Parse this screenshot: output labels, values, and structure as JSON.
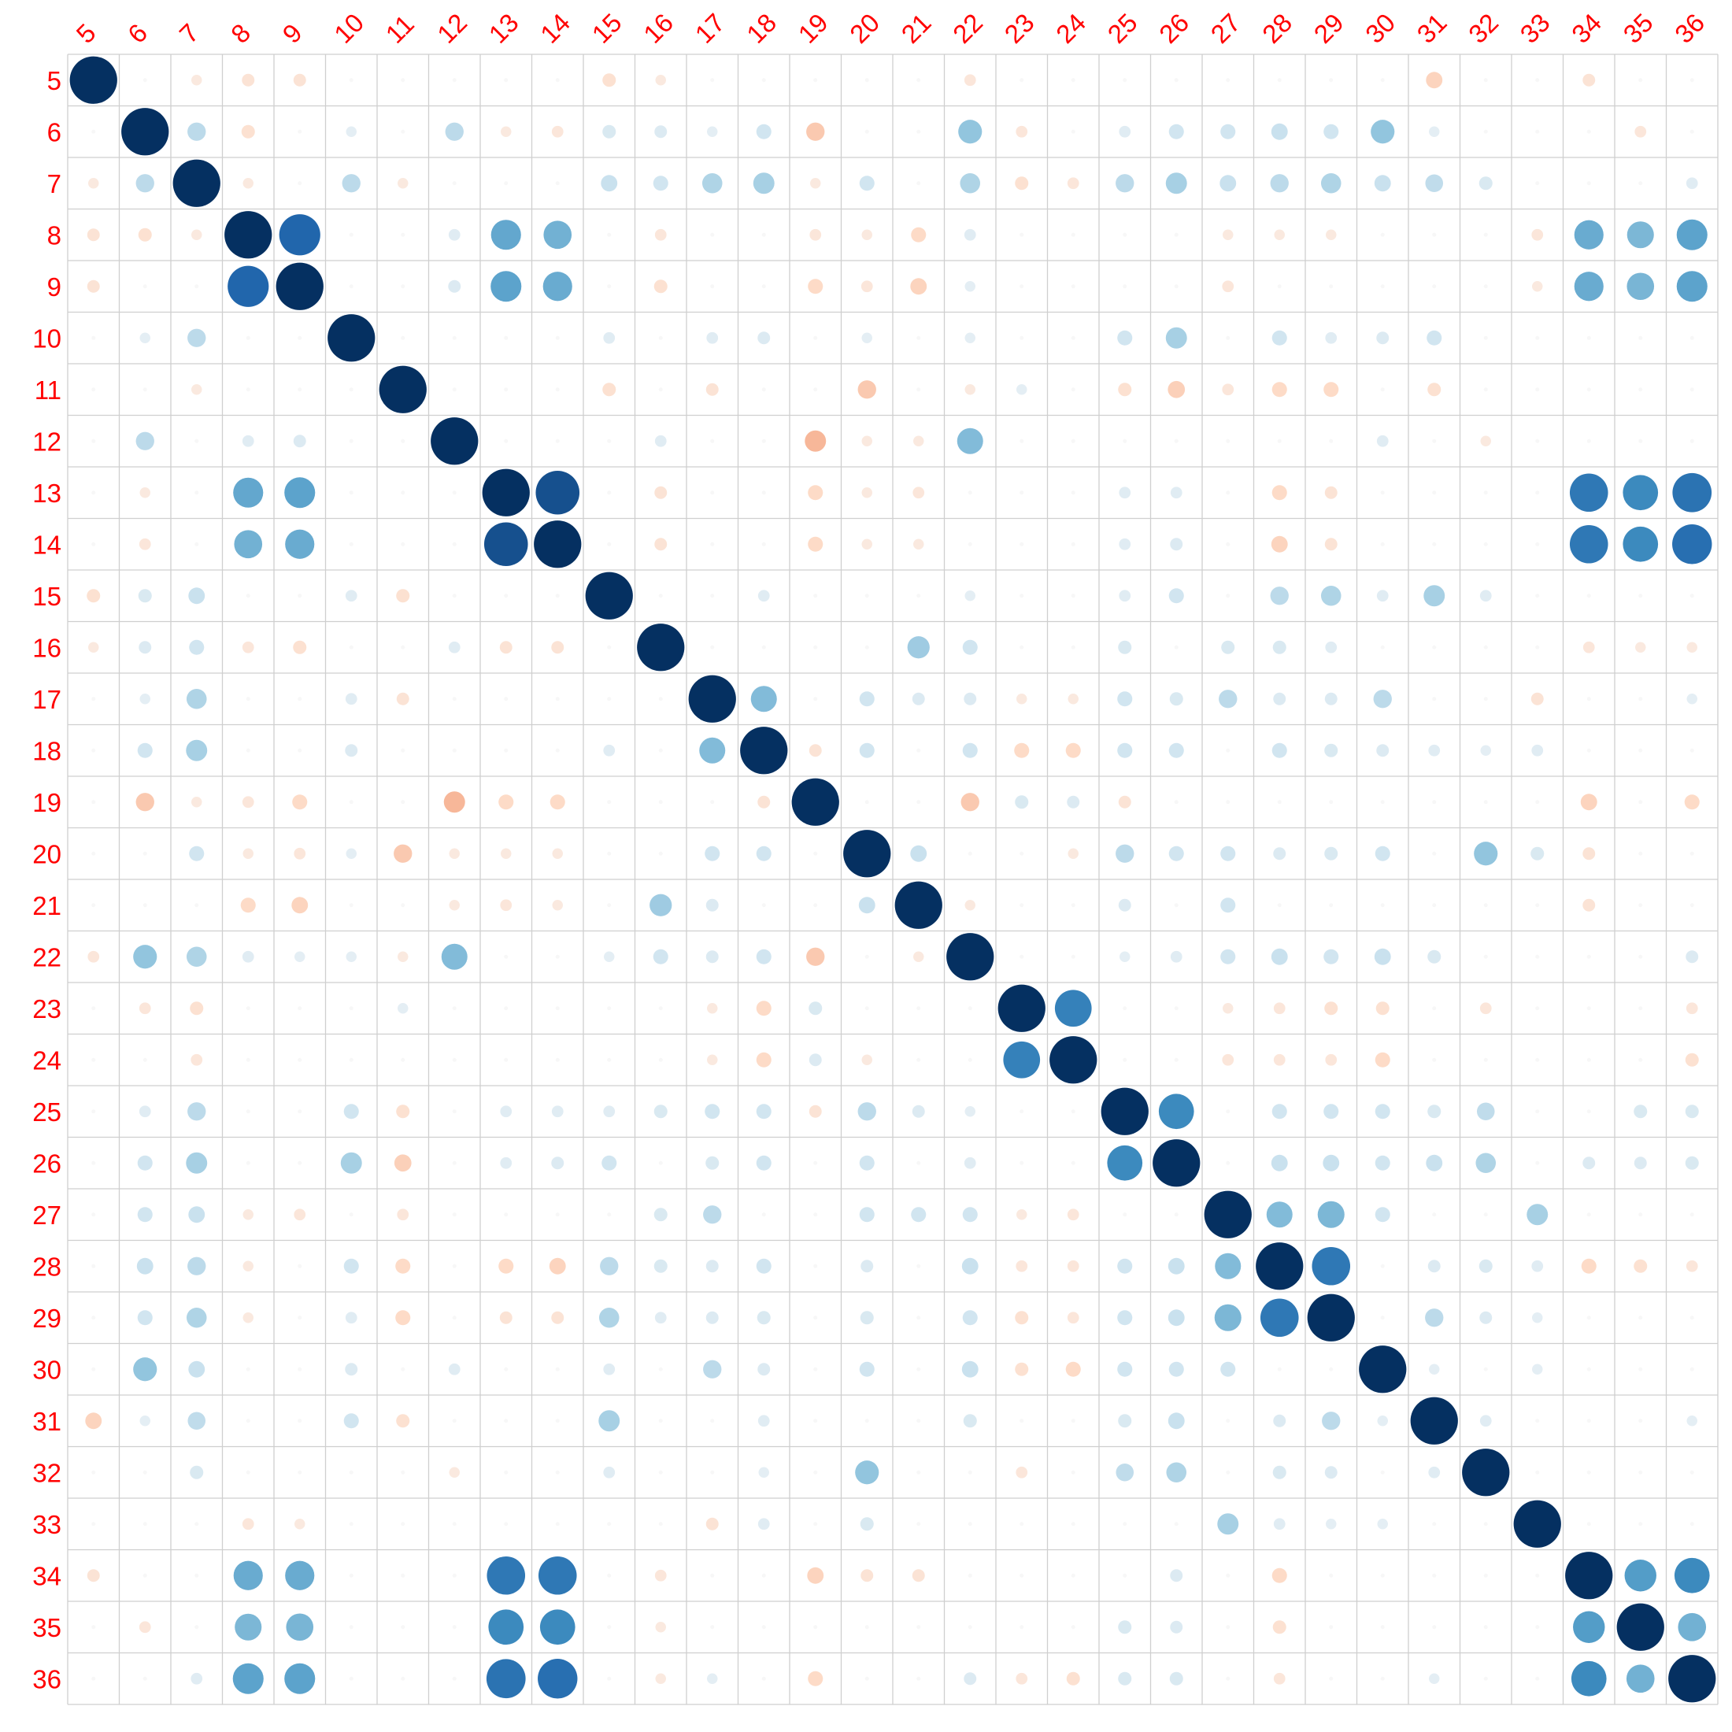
{
  "chart_data": {
    "type": "heatmap",
    "subtype": "correlation-matrix-circles",
    "title": "",
    "xlabel": "",
    "ylabel": "",
    "labels": [
      "5",
      "6",
      "7",
      "8",
      "9",
      "10",
      "11",
      "12",
      "13",
      "14",
      "15",
      "16",
      "17",
      "18",
      "19",
      "20",
      "21",
      "22",
      "23",
      "24",
      "25",
      "26",
      "27",
      "28",
      "29",
      "30",
      "31",
      "32",
      "33",
      "34",
      "35",
      "36"
    ],
    "value_range": [
      -1,
      1
    ],
    "grid": true,
    "legend": "none",
    "label_color": "#ff0000",
    "grid_color": "#cfcfcf",
    "diagonal_value": 1,
    "pairs": [
      [
        "5",
        "7",
        -0.05
      ],
      [
        "5",
        "8",
        -0.07
      ],
      [
        "5",
        "9",
        -0.07
      ],
      [
        "5",
        "15",
        -0.08
      ],
      [
        "5",
        "16",
        -0.05
      ],
      [
        "5",
        "22",
        -0.06
      ],
      [
        "5",
        "31",
        -0.12
      ],
      [
        "5",
        "34",
        -0.07
      ],
      [
        "6",
        "7",
        0.15
      ],
      [
        "6",
        "8",
        -0.08
      ],
      [
        "6",
        "10",
        0.05
      ],
      [
        "6",
        "12",
        0.15
      ],
      [
        "6",
        "13",
        -0.05
      ],
      [
        "6",
        "14",
        -0.06
      ],
      [
        "6",
        "15",
        0.08
      ],
      [
        "6",
        "16",
        0.07
      ],
      [
        "6",
        "17",
        0.05
      ],
      [
        "6",
        "18",
        0.1
      ],
      [
        "6",
        "19",
        -0.15
      ],
      [
        "6",
        "22",
        0.25
      ],
      [
        "6",
        "23",
        -0.06
      ],
      [
        "6",
        "25",
        0.06
      ],
      [
        "6",
        "26",
        0.1
      ],
      [
        "6",
        "27",
        0.1
      ],
      [
        "6",
        "28",
        0.12
      ],
      [
        "6",
        "29",
        0.1
      ],
      [
        "6",
        "30",
        0.25
      ],
      [
        "6",
        "31",
        0.05
      ],
      [
        "6",
        "35",
        -0.06
      ],
      [
        "7",
        "8",
        -0.05
      ],
      [
        "7",
        "10",
        0.15
      ],
      [
        "7",
        "11",
        -0.05
      ],
      [
        "7",
        "15",
        0.12
      ],
      [
        "7",
        "16",
        0.1
      ],
      [
        "7",
        "17",
        0.18
      ],
      [
        "7",
        "18",
        0.2
      ],
      [
        "7",
        "19",
        -0.05
      ],
      [
        "7",
        "20",
        0.1
      ],
      [
        "7",
        "22",
        0.18
      ],
      [
        "7",
        "23",
        -0.08
      ],
      [
        "7",
        "24",
        -0.06
      ],
      [
        "7",
        "25",
        0.15
      ],
      [
        "7",
        "26",
        0.2
      ],
      [
        "7",
        "27",
        0.12
      ],
      [
        "7",
        "28",
        0.15
      ],
      [
        "7",
        "29",
        0.18
      ],
      [
        "7",
        "30",
        0.12
      ],
      [
        "7",
        "31",
        0.14
      ],
      [
        "7",
        "32",
        0.08
      ],
      [
        "7",
        "36",
        0.06
      ],
      [
        "8",
        "9",
        0.75
      ],
      [
        "8",
        "12",
        0.06
      ],
      [
        "8",
        "13",
        0.4
      ],
      [
        "8",
        "14",
        0.35
      ],
      [
        "8",
        "16",
        -0.06
      ],
      [
        "8",
        "19",
        -0.06
      ],
      [
        "8",
        "20",
        -0.05
      ],
      [
        "8",
        "21",
        -0.1
      ],
      [
        "8",
        "22",
        0.06
      ],
      [
        "8",
        "27",
        -0.05
      ],
      [
        "8",
        "28",
        -0.05
      ],
      [
        "8",
        "29",
        -0.05
      ],
      [
        "8",
        "33",
        -0.06
      ],
      [
        "8",
        "34",
        0.38
      ],
      [
        "8",
        "35",
        0.32
      ],
      [
        "8",
        "36",
        0.42
      ],
      [
        "9",
        "12",
        0.07
      ],
      [
        "9",
        "13",
        0.42
      ],
      [
        "9",
        "14",
        0.38
      ],
      [
        "9",
        "16",
        -0.08
      ],
      [
        "9",
        "19",
        -0.1
      ],
      [
        "9",
        "20",
        -0.06
      ],
      [
        "9",
        "21",
        -0.12
      ],
      [
        "9",
        "22",
        0.05
      ],
      [
        "9",
        "27",
        -0.06
      ],
      [
        "9",
        "33",
        -0.05
      ],
      [
        "9",
        "34",
        0.38
      ],
      [
        "9",
        "35",
        0.33
      ],
      [
        "9",
        "36",
        0.42
      ],
      [
        "10",
        "15",
        0.06
      ],
      [
        "10",
        "17",
        0.06
      ],
      [
        "10",
        "18",
        0.07
      ],
      [
        "10",
        "20",
        0.05
      ],
      [
        "10",
        "22",
        0.05
      ],
      [
        "10",
        "25",
        0.1
      ],
      [
        "10",
        "26",
        0.2
      ],
      [
        "10",
        "28",
        0.1
      ],
      [
        "10",
        "29",
        0.06
      ],
      [
        "10",
        "30",
        0.07
      ],
      [
        "10",
        "31",
        0.1
      ],
      [
        "11",
        "15",
        -0.08
      ],
      [
        "11",
        "17",
        -0.07
      ],
      [
        "11",
        "20",
        -0.15
      ],
      [
        "11",
        "22",
        -0.05
      ],
      [
        "11",
        "23",
        0.05
      ],
      [
        "11",
        "25",
        -0.08
      ],
      [
        "11",
        "26",
        -0.13
      ],
      [
        "11",
        "27",
        -0.06
      ],
      [
        "11",
        "28",
        -0.1
      ],
      [
        "11",
        "29",
        -0.1
      ],
      [
        "11",
        "31",
        -0.08
      ],
      [
        "12",
        "16",
        0.06
      ],
      [
        "12",
        "19",
        -0.2
      ],
      [
        "12",
        "20",
        -0.05
      ],
      [
        "12",
        "21",
        -0.05
      ],
      [
        "12",
        "22",
        0.3
      ],
      [
        "12",
        "30",
        0.06
      ],
      [
        "12",
        "32",
        -0.05
      ],
      [
        "13",
        "14",
        0.85
      ],
      [
        "13",
        "16",
        -0.07
      ],
      [
        "13",
        "19",
        -0.1
      ],
      [
        "13",
        "20",
        -0.05
      ],
      [
        "13",
        "21",
        -0.06
      ],
      [
        "13",
        "25",
        0.06
      ],
      [
        "13",
        "26",
        0.06
      ],
      [
        "13",
        "28",
        -0.1
      ],
      [
        "13",
        "29",
        -0.07
      ],
      [
        "13",
        "34",
        0.65
      ],
      [
        "13",
        "35",
        0.55
      ],
      [
        "13",
        "36",
        0.68
      ],
      [
        "14",
        "16",
        -0.07
      ],
      [
        "14",
        "19",
        -0.1
      ],
      [
        "14",
        "20",
        -0.05
      ],
      [
        "14",
        "21",
        -0.05
      ],
      [
        "14",
        "25",
        0.06
      ],
      [
        "14",
        "26",
        0.07
      ],
      [
        "14",
        "28",
        -0.12
      ],
      [
        "14",
        "29",
        -0.07
      ],
      [
        "14",
        "34",
        0.65
      ],
      [
        "14",
        "35",
        0.55
      ],
      [
        "14",
        "36",
        0.7
      ],
      [
        "15",
        "18",
        0.06
      ],
      [
        "15",
        "22",
        0.05
      ],
      [
        "15",
        "25",
        0.06
      ],
      [
        "15",
        "26",
        0.1
      ],
      [
        "15",
        "28",
        0.15
      ],
      [
        "15",
        "29",
        0.18
      ],
      [
        "15",
        "30",
        0.06
      ],
      [
        "15",
        "31",
        0.2
      ],
      [
        "15",
        "32",
        0.06
      ],
      [
        "16",
        "21",
        0.22
      ],
      [
        "16",
        "22",
        0.1
      ],
      [
        "16",
        "25",
        0.08
      ],
      [
        "16",
        "27",
        0.08
      ],
      [
        "16",
        "28",
        0.08
      ],
      [
        "16",
        "29",
        0.06
      ],
      [
        "16",
        "34",
        -0.06
      ],
      [
        "16",
        "35",
        -0.05
      ],
      [
        "16",
        "36",
        -0.05
      ],
      [
        "17",
        "18",
        0.3
      ],
      [
        "17",
        "20",
        0.1
      ],
      [
        "17",
        "21",
        0.07
      ],
      [
        "17",
        "22",
        0.07
      ],
      [
        "17",
        "23",
        -0.05
      ],
      [
        "17",
        "24",
        -0.05
      ],
      [
        "17",
        "25",
        0.1
      ],
      [
        "17",
        "26",
        0.08
      ],
      [
        "17",
        "27",
        0.15
      ],
      [
        "17",
        "28",
        0.07
      ],
      [
        "17",
        "29",
        0.07
      ],
      [
        "17",
        "30",
        0.15
      ],
      [
        "17",
        "33",
        -0.07
      ],
      [
        "17",
        "36",
        0.05
      ],
      [
        "18",
        "19",
        -0.07
      ],
      [
        "18",
        "20",
        0.1
      ],
      [
        "18",
        "22",
        0.1
      ],
      [
        "18",
        "23",
        -0.1
      ],
      [
        "18",
        "24",
        -0.1
      ],
      [
        "18",
        "25",
        0.1
      ],
      [
        "18",
        "26",
        0.1
      ],
      [
        "18",
        "28",
        0.1
      ],
      [
        "18",
        "29",
        0.08
      ],
      [
        "18",
        "30",
        0.07
      ],
      [
        "18",
        "31",
        0.06
      ],
      [
        "18",
        "32",
        0.05
      ],
      [
        "18",
        "33",
        0.06
      ],
      [
        "19",
        "22",
        -0.15
      ],
      [
        "19",
        "23",
        0.08
      ],
      [
        "19",
        "24",
        0.07
      ],
      [
        "19",
        "25",
        -0.07
      ],
      [
        "19",
        "34",
        -0.12
      ],
      [
        "19",
        "36",
        -0.1
      ],
      [
        "20",
        "21",
        0.12
      ],
      [
        "20",
        "24",
        -0.05
      ],
      [
        "20",
        "25",
        0.15
      ],
      [
        "20",
        "26",
        0.1
      ],
      [
        "20",
        "27",
        0.1
      ],
      [
        "20",
        "28",
        0.07
      ],
      [
        "20",
        "29",
        0.08
      ],
      [
        "20",
        "30",
        0.1
      ],
      [
        "20",
        "32",
        0.25
      ],
      [
        "20",
        "33",
        0.08
      ],
      [
        "20",
        "34",
        -0.07
      ],
      [
        "21",
        "22",
        -0.05
      ],
      [
        "21",
        "25",
        0.07
      ],
      [
        "21",
        "27",
        0.1
      ],
      [
        "21",
        "34",
        -0.07
      ],
      [
        "22",
        "25",
        0.05
      ],
      [
        "22",
        "26",
        0.06
      ],
      [
        "22",
        "27",
        0.1
      ],
      [
        "22",
        "28",
        0.12
      ],
      [
        "22",
        "29",
        0.1
      ],
      [
        "22",
        "30",
        0.12
      ],
      [
        "22",
        "31",
        0.08
      ],
      [
        "22",
        "36",
        0.07
      ],
      [
        "23",
        "24",
        0.6
      ],
      [
        "23",
        "27",
        -0.05
      ],
      [
        "23",
        "28",
        -0.06
      ],
      [
        "23",
        "29",
        -0.08
      ],
      [
        "23",
        "30",
        -0.08
      ],
      [
        "23",
        "32",
        -0.06
      ],
      [
        "23",
        "36",
        -0.06
      ],
      [
        "24",
        "27",
        -0.06
      ],
      [
        "24",
        "28",
        -0.06
      ],
      [
        "24",
        "29",
        -0.06
      ],
      [
        "24",
        "30",
        -0.1
      ],
      [
        "24",
        "36",
        -0.08
      ],
      [
        "25",
        "26",
        0.55
      ],
      [
        "25",
        "28",
        0.1
      ],
      [
        "25",
        "29",
        0.1
      ],
      [
        "25",
        "30",
        0.1
      ],
      [
        "25",
        "31",
        0.08
      ],
      [
        "25",
        "32",
        0.14
      ],
      [
        "25",
        "35",
        0.08
      ],
      [
        "25",
        "36",
        0.08
      ],
      [
        "26",
        "28",
        0.12
      ],
      [
        "26",
        "29",
        0.12
      ],
      [
        "26",
        "30",
        0.1
      ],
      [
        "26",
        "31",
        0.12
      ],
      [
        "26",
        "32",
        0.18
      ],
      [
        "26",
        "34",
        0.07
      ],
      [
        "26",
        "35",
        0.07
      ],
      [
        "26",
        "36",
        0.08
      ],
      [
        "27",
        "28",
        0.3
      ],
      [
        "27",
        "29",
        0.32
      ],
      [
        "27",
        "30",
        0.1
      ],
      [
        "27",
        "33",
        0.2
      ],
      [
        "28",
        "29",
        0.65
      ],
      [
        "28",
        "31",
        0.07
      ],
      [
        "28",
        "32",
        0.08
      ],
      [
        "28",
        "33",
        0.06
      ],
      [
        "28",
        "34",
        -0.1
      ],
      [
        "28",
        "35",
        -0.08
      ],
      [
        "28",
        "36",
        -0.06
      ],
      [
        "29",
        "31",
        0.15
      ],
      [
        "29",
        "32",
        0.07
      ],
      [
        "29",
        "33",
        0.05
      ],
      [
        "30",
        "31",
        0.05
      ],
      [
        "30",
        "33",
        0.05
      ],
      [
        "31",
        "32",
        0.06
      ],
      [
        "31",
        "36",
        0.05
      ],
      [
        "34",
        "35",
        0.45
      ],
      [
        "34",
        "36",
        0.55
      ],
      [
        "35",
        "36",
        0.35
      ]
    ]
  }
}
